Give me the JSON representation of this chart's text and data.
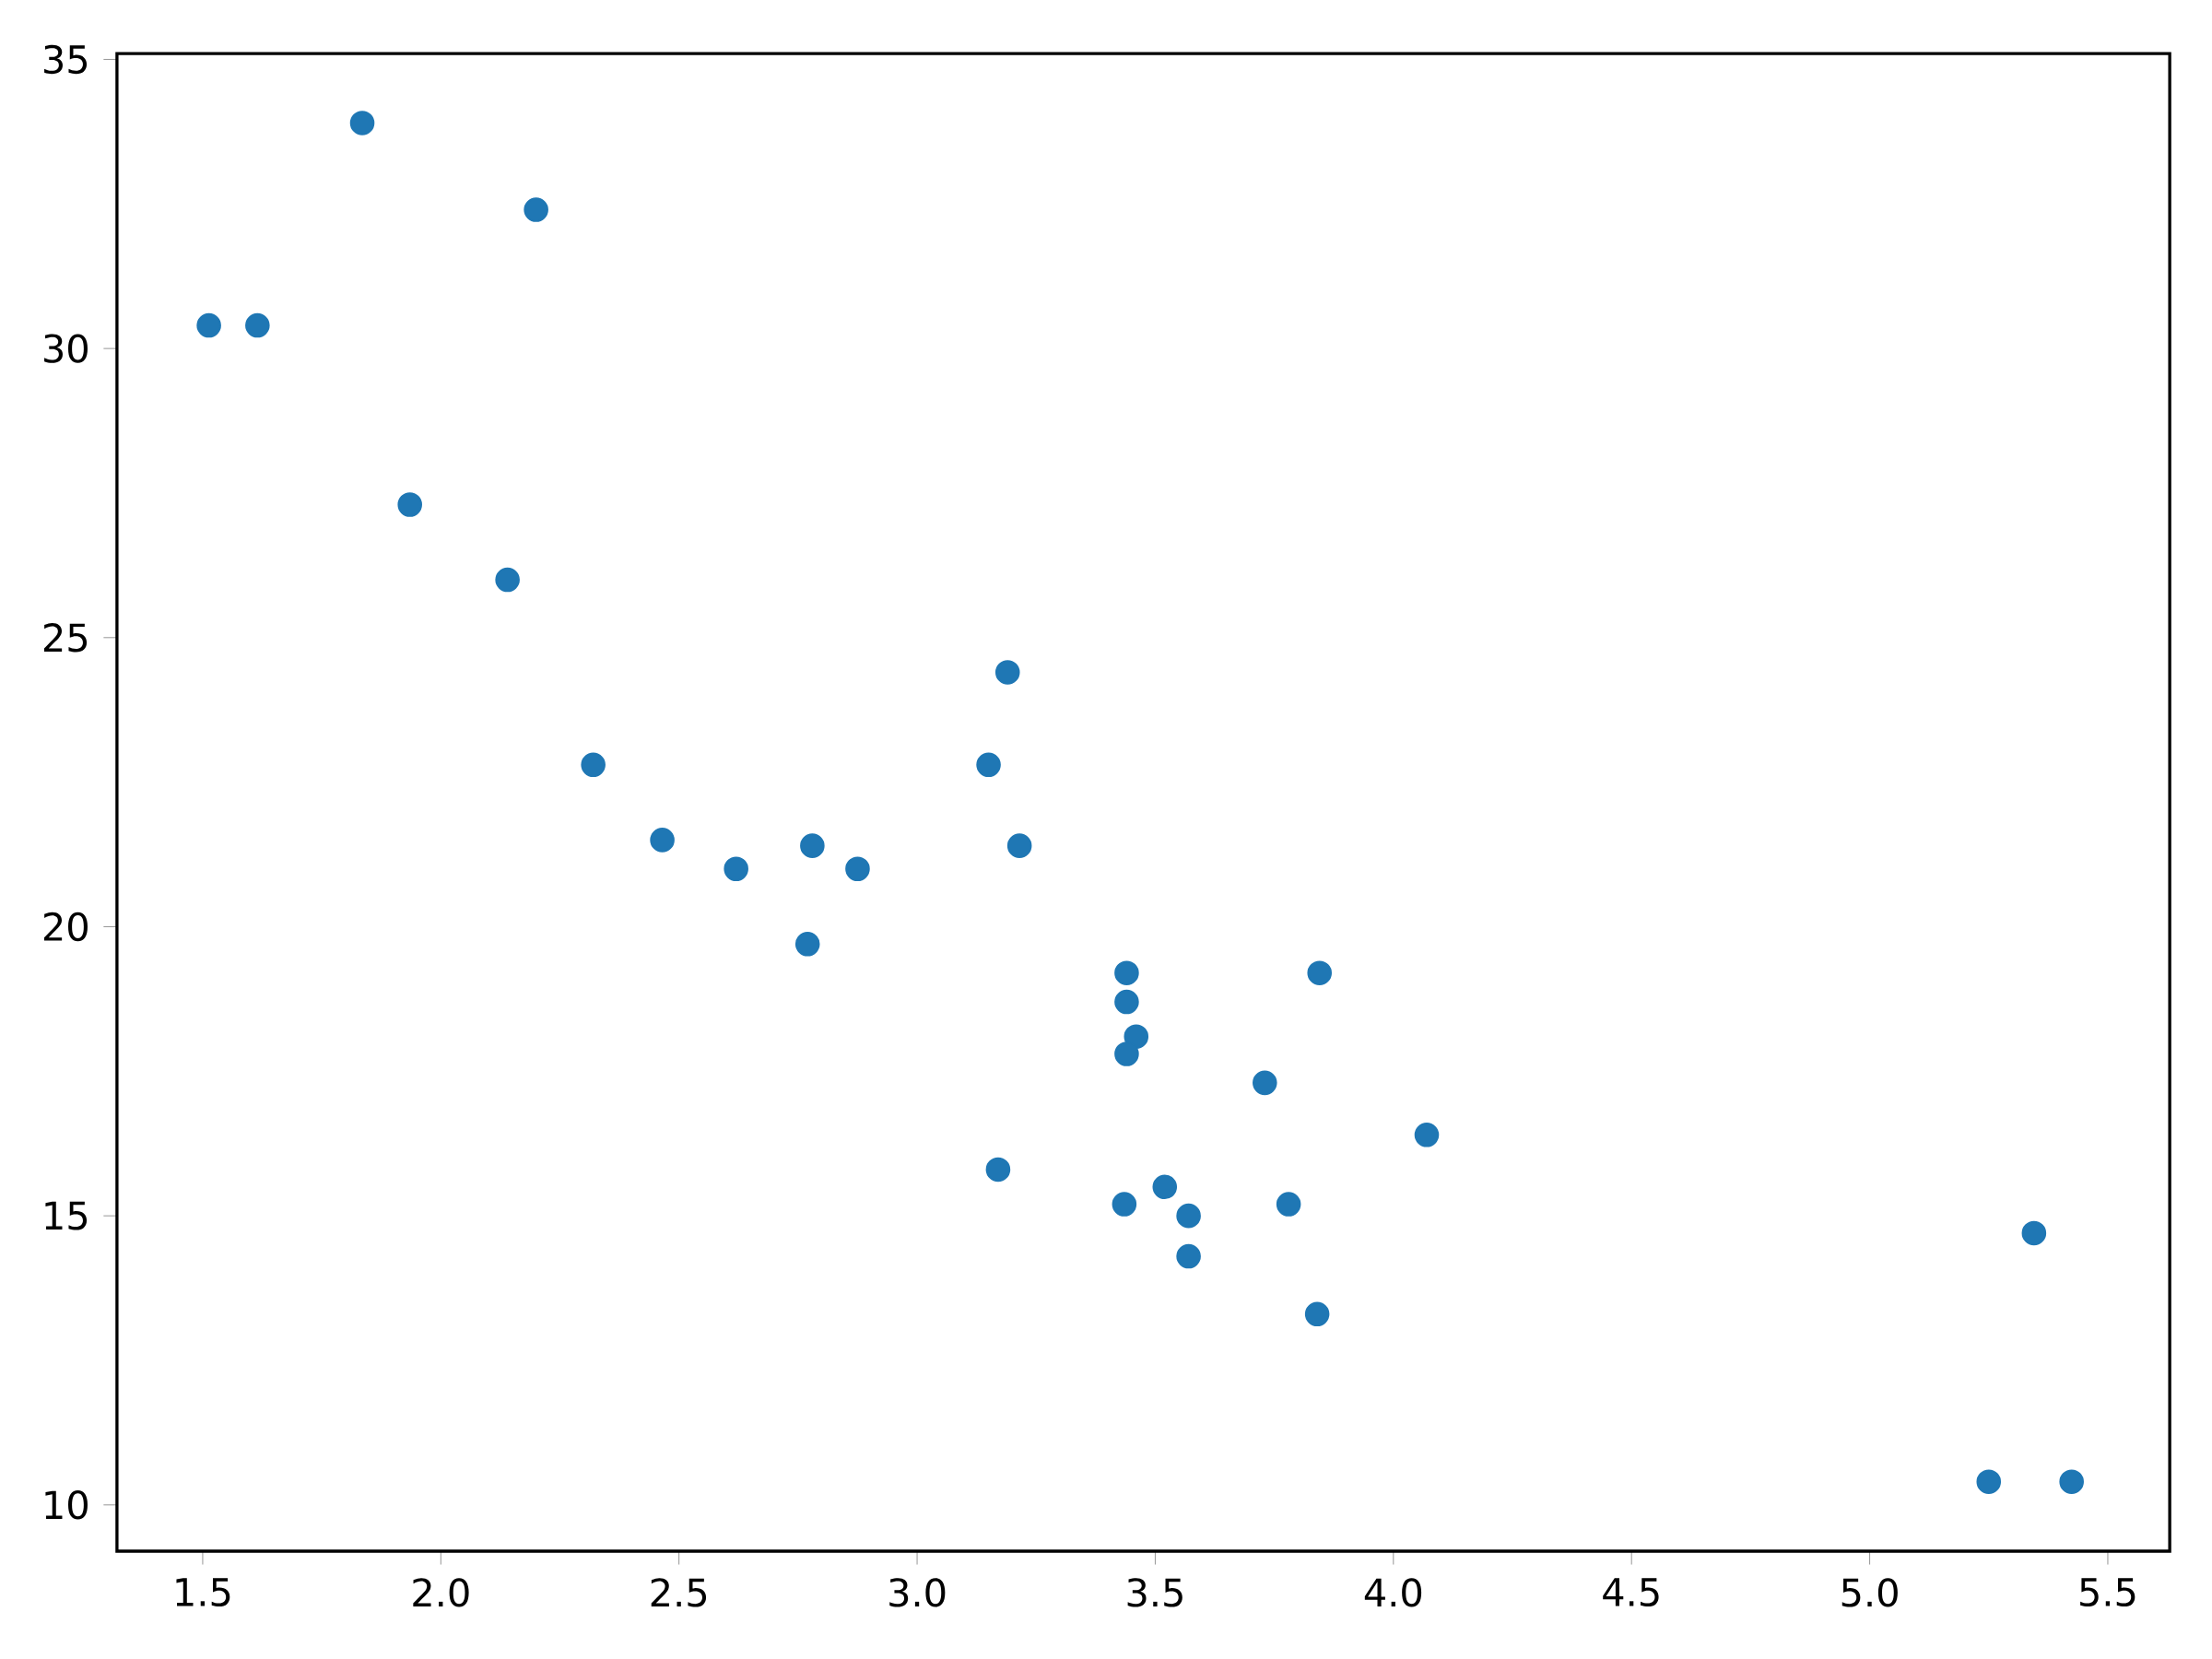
{
  "chart_data": {
    "type": "scatter",
    "marker": "circle",
    "color": "#1f77b4",
    "x": [
      2.62,
      2.875,
      2.32,
      3.215,
      3.44,
      3.46,
      3.57,
      3.19,
      3.15,
      3.44,
      3.44,
      4.07,
      3.73,
      3.78,
      5.25,
      5.424,
      5.345,
      2.2,
      1.615,
      1.835,
      2.465,
      3.52,
      3.435,
      3.84,
      3.845,
      1.935,
      2.14,
      1.513,
      3.17,
      2.77,
      3.57,
      2.78
    ],
    "values": [
      21.0,
      21.0,
      22.8,
      21.4,
      18.7,
      18.1,
      14.3,
      24.4,
      22.8,
      19.2,
      17.8,
      16.4,
      17.3,
      15.2,
      10.4,
      10.4,
      14.7,
      32.4,
      30.4,
      33.9,
      21.5,
      15.5,
      15.2,
      13.3,
      19.2,
      27.3,
      26.0,
      30.4,
      15.8,
      19.7,
      15.0,
      21.4
    ],
    "xlim": [
      1.32,
      5.63
    ],
    "ylim": [
      9.2,
      35.1
    ],
    "xticks": [
      1.5,
      {
        "value": 2,
        "label": "2.0"
      },
      2.5,
      {
        "value": 3,
        "label": "3.0"
      },
      3.5,
      {
        "value": 4,
        "label": "4.0"
      },
      4.5,
      {
        "value": 5,
        "label": "5.0"
      },
      5.5
    ],
    "yticks": [
      10,
      15,
      20,
      25,
      30,
      35
    ]
  }
}
